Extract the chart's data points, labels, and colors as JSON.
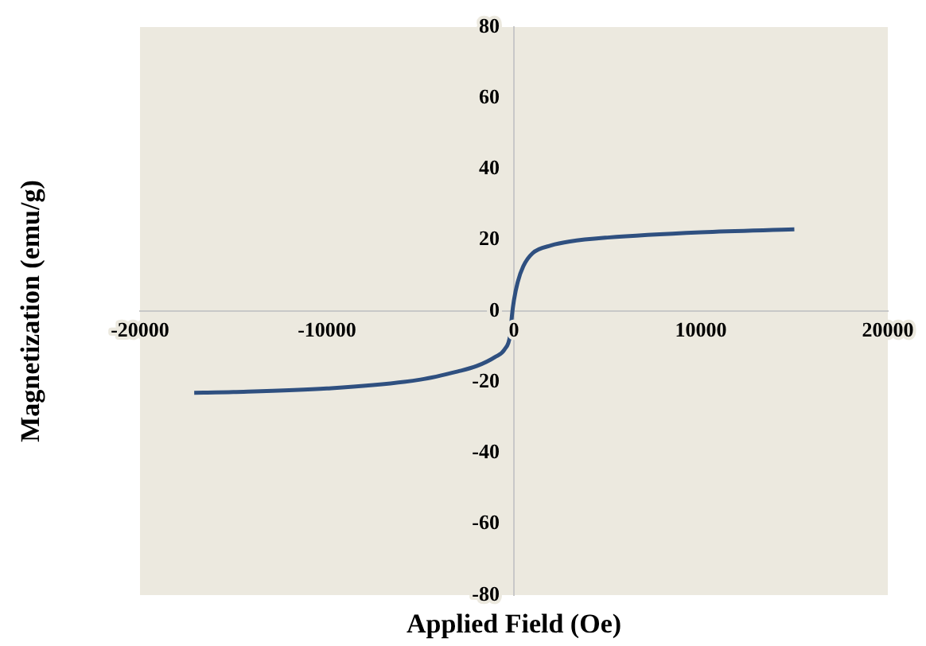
{
  "chart_data": {
    "type": "line",
    "xlabel": "Applied Field (Oe)",
    "ylabel": "Magnetization (emu/g)",
    "xlim": [
      -20000,
      20000
    ],
    "xticks": [
      -20000,
      -10000,
      0,
      10000,
      20000
    ],
    "ylim": [
      -80,
      80
    ],
    "yticks": [
      -80,
      -60,
      -40,
      -20,
      0,
      20,
      40,
      60,
      80
    ],
    "grid": false,
    "legend": false,
    "marker": "none",
    "line_style": "solid",
    "series": [
      {
        "color": "#2f5080",
        "x": [
          -17100,
          -15000,
          -10000,
          -5000,
          -3000,
          -2000,
          -1000,
          -500,
          -200,
          -100,
          0,
          200,
          500,
          1000,
          2000,
          3000,
          5000,
          10000,
          15000
        ],
        "values": [
          -23.0,
          -22.8,
          -21.8,
          -19.3,
          -17.0,
          -15.5,
          -12.9,
          -10.8,
          -6.7,
          -1.0,
          3.0,
          8.1,
          12.6,
          16.3,
          18.5,
          19.6,
          20.7,
          22.2,
          23.0
        ]
      }
    ]
  }
}
